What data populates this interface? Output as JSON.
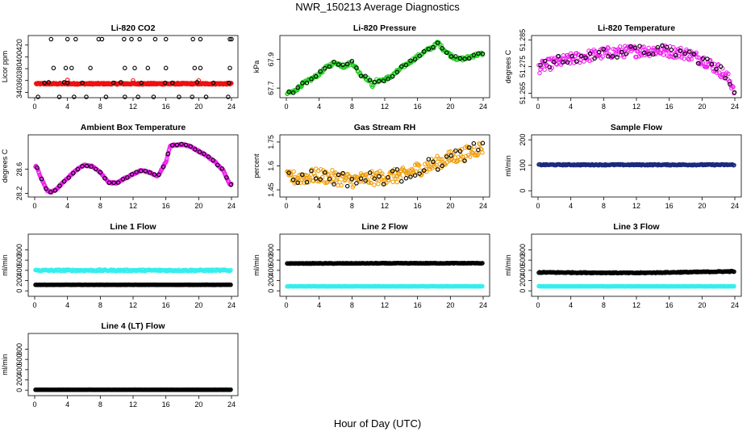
{
  "title": "NWR_150213  Average Diagnostics",
  "xlabel": "Hour of Day (UTC)",
  "colors": {
    "red": "#ee1111",
    "green": "#22cc22",
    "magenta": "#ee22ee",
    "orange": "#f0a010",
    "navy": "#1a2a7a",
    "cyan": "#33eeee",
    "black": "#000000"
  },
  "chart_data": [
    {
      "type": "scatter",
      "title": "Li-820 CO2",
      "ylabel": "Licor ppm",
      "xlim": [
        0,
        24
      ],
      "xticks": [
        0,
        4,
        8,
        12,
        16,
        20,
        24
      ],
      "ylim": [
        335,
        432
      ],
      "yticks": [
        340,
        360,
        380,
        400,
        420
      ],
      "series": [
        {
          "color": "red",
          "values": [
            [
              0.2,
              354.5
            ],
            [
              4.0,
              361.0
            ],
            [
              12.0,
              360.0
            ],
            [
              20.0,
              360.0
            ],
            [
              4.1,
              356
            ],
            [
              12.1,
              356
            ]
          ],
          "band": {
            "x": [
              0.2,
              24
            ],
            "y": 354.5,
            "jitter": 2
          }
        },
        {
          "color": "black",
          "values": [
            [
              0.4,
              331
            ],
            [
              3.0,
              331
            ],
            [
              4.8,
              331
            ],
            [
              6.3,
              331
            ],
            [
              8.7,
              331
            ],
            [
              11.0,
              331
            ],
            [
              12.6,
              331
            ],
            [
              14.5,
              331
            ],
            [
              17.6,
              331
            ],
            [
              19.2,
              331
            ],
            [
              20.9,
              331
            ],
            [
              23.6,
              331
            ],
            [
              1.2,
              356
            ],
            [
              4.0,
              356
            ],
            [
              5.8,
              356
            ],
            [
              9.6,
              356
            ],
            [
              13.0,
              356
            ],
            [
              15.9,
              356
            ],
            [
              16.8,
              356
            ],
            [
              21.8,
              356
            ],
            [
              23.7,
              356
            ],
            [
              1.7,
              357
            ],
            [
              3.6,
              357
            ],
            [
              10.5,
              357
            ],
            [
              19.8,
              357
            ],
            [
              2.3,
              381
            ],
            [
              3.8,
              381
            ],
            [
              4.5,
              381
            ],
            [
              6.8,
              381
            ],
            [
              11.0,
              381
            ],
            [
              12.2,
              381
            ],
            [
              13.8,
              381
            ],
            [
              16.0,
              381
            ],
            [
              19.5,
              381
            ],
            [
              20.2,
              381
            ],
            [
              23.8,
              381
            ],
            [
              2.0,
              430
            ],
            [
              4.0,
              430
            ],
            [
              5.0,
              430
            ],
            [
              7.8,
              430
            ],
            [
              8.2,
              430
            ],
            [
              10.9,
              430
            ],
            [
              11.8,
              430
            ],
            [
              12.8,
              430
            ],
            [
              14.7,
              430
            ],
            [
              16.0,
              430
            ],
            [
              19.3,
              430
            ],
            [
              20.2,
              430
            ],
            [
              23.8,
              430
            ],
            [
              24.0,
              430
            ]
          ]
        }
      ]
    },
    {
      "type": "scatter",
      "title": "Li-820 Pressure",
      "ylabel": "kPa",
      "xlim": [
        0,
        24
      ],
      "xticks": [
        0,
        4,
        8,
        12,
        16,
        20,
        24
      ],
      "ylim": [
        67.65,
        68.05
      ],
      "yticks": [
        67.7,
        67.9
      ],
      "series": [
        {
          "color": "green",
          "dense": true,
          "noise": 0.012,
          "curve": [
            [
              0,
              67.66
            ],
            [
              1,
              67.68
            ],
            [
              2,
              67.73
            ],
            [
              3,
              67.76
            ],
            [
              4,
              67.8
            ],
            [
              5,
              67.85
            ],
            [
              6,
              67.88
            ],
            [
              7,
              67.85
            ],
            [
              8,
              67.88
            ],
            [
              9,
              67.8
            ],
            [
              10,
              67.76
            ],
            [
              10.5,
              67.72
            ],
            [
              11,
              67.75
            ],
            [
              12,
              67.76
            ],
            [
              13,
              67.79
            ],
            [
              14,
              67.84
            ],
            [
              15,
              67.88
            ],
            [
              16,
              67.92
            ],
            [
              17,
              67.96
            ],
            [
              18,
              67.99
            ],
            [
              18.5,
              68.02
            ],
            [
              19,
              67.98
            ],
            [
              20,
              67.93
            ],
            [
              21,
              67.9
            ],
            [
              22,
              67.91
            ],
            [
              23,
              67.93
            ],
            [
              24,
              67.94
            ]
          ]
        }
      ]
    },
    {
      "type": "scatter",
      "title": "Li-820 Temperature",
      "ylabel": "degrees C",
      "xlim": [
        0,
        24
      ],
      "xticks": [
        0,
        4,
        8,
        12,
        16,
        20,
        24
      ],
      "ylim": [
        51.2642,
        51.2858
      ],
      "yticks": [
        51.265,
        51.275,
        51.285
      ],
      "series": [
        {
          "color": "magenta",
          "dense": true,
          "noise": 0.0022,
          "curve": [
            [
              0,
              51.2745
            ],
            [
              2,
              51.2765
            ],
            [
              4,
              51.2778
            ],
            [
              6,
              51.279
            ],
            [
              8,
              51.28
            ],
            [
              10,
              51.2806
            ],
            [
              12,
              51.2808
            ],
            [
              14,
              51.2812
            ],
            [
              16,
              51.2808
            ],
            [
              18,
              51.28
            ],
            [
              20,
              51.2778
            ],
            [
              22,
              51.274
            ],
            [
              23,
              51.2712
            ],
            [
              24,
              51.2665
            ]
          ]
        }
      ]
    },
    {
      "type": "scatter",
      "title": "Ambient Box Temperature",
      "ylabel": "degrees C",
      "xlim": [
        0,
        24
      ],
      "xticks": [
        0,
        4,
        8,
        12,
        16,
        20,
        24
      ],
      "ylim": [
        28.18,
        29.13
      ],
      "yticks": [
        28.2,
        28.6
      ],
      "series": [
        {
          "color": "magenta",
          "dense": true,
          "noise": 0.01,
          "curve": [
            [
              0.2,
              28.65
            ],
            [
              0.8,
              28.45
            ],
            [
              1.5,
              28.25
            ],
            [
              2,
              28.22
            ],
            [
              2.5,
              28.25
            ],
            [
              3,
              28.32
            ],
            [
              4,
              28.45
            ],
            [
              5,
              28.58
            ],
            [
              6,
              28.67
            ],
            [
              7,
              28.65
            ],
            [
              8,
              28.55
            ],
            [
              9,
              28.38
            ],
            [
              10,
              28.37
            ],
            [
              11,
              28.45
            ],
            [
              12,
              28.52
            ],
            [
              13,
              28.58
            ],
            [
              14,
              28.55
            ],
            [
              15,
              28.48
            ],
            [
              16,
              28.72
            ],
            [
              16.5,
              28.98
            ],
            [
              17,
              29.0
            ],
            [
              18,
              29.01
            ],
            [
              19,
              28.98
            ],
            [
              20,
              28.9
            ],
            [
              21,
              28.82
            ],
            [
              22,
              28.72
            ],
            [
              23,
              28.58
            ],
            [
              23.8,
              28.35
            ]
          ]
        }
      ]
    },
    {
      "type": "scatter",
      "title": "Gas Stream RH",
      "ylabel": "percent",
      "xlim": [
        0,
        24
      ],
      "xticks": [
        0,
        4,
        8,
        12,
        16,
        20,
        24
      ],
      "ylim": [
        1.42,
        1.78
      ],
      "yticks": [
        1.45,
        1.6,
        1.75
      ],
      "series": [
        {
          "color": "orange",
          "dense": true,
          "noise": 0.045,
          "curve": [
            [
              0,
              1.52
            ],
            [
              4,
              1.54
            ],
            [
              8,
              1.51
            ],
            [
              12,
              1.53
            ],
            [
              14,
              1.54
            ],
            [
              16,
              1.58
            ],
            [
              18,
              1.61
            ],
            [
              20,
              1.65
            ],
            [
              22,
              1.68
            ],
            [
              24,
              1.72
            ]
          ]
        }
      ]
    },
    {
      "type": "scatter",
      "title": "Sample Flow",
      "ylabel": "ml/min",
      "xlim": [
        0,
        24
      ],
      "xticks": [
        0,
        4,
        8,
        12,
        16,
        20,
        24
      ],
      "ylim": [
        -15,
        210
      ],
      "yticks": [
        0,
        100,
        200
      ],
      "series": [
        {
          "color": "navy",
          "dense": true,
          "noise": 2,
          "curve": [
            [
              0,
              102
            ],
            [
              24,
              102
            ]
          ]
        }
      ]
    },
    {
      "type": "scatter",
      "title": "Line 1 Flow",
      "ylabel": "ml/min",
      "xlim": [
        0,
        24
      ],
      "xticks": [
        0,
        4,
        8,
        12,
        16,
        20,
        24
      ],
      "ylim": [
        -60,
        1060
      ],
      "yticks": [
        0,
        200,
        400,
        600,
        800
      ],
      "series": [
        {
          "color": "cyan",
          "dense": true,
          "noise": 15,
          "curve": [
            [
              0,
              400
            ],
            [
              24,
              400
            ]
          ]
        },
        {
          "color": "black",
          "dense": true,
          "noise": 3,
          "curve": [
            [
              0,
              118
            ],
            [
              24,
              118
            ]
          ]
        }
      ]
    },
    {
      "type": "scatter",
      "title": "Line 2 Flow",
      "ylabel": "ml/min",
      "xlim": [
        0,
        24
      ],
      "xticks": [
        0,
        4,
        8,
        12,
        16,
        20,
        24
      ],
      "ylim": [
        -60,
        1060
      ],
      "yticks": [
        0,
        200,
        400,
        600,
        800
      ],
      "series": [
        {
          "color": "black",
          "dense": true,
          "noise": 5,
          "curve": [
            [
              0,
              535
            ],
            [
              24,
              540
            ]
          ]
        },
        {
          "color": "cyan",
          "dense": true,
          "noise": 3,
          "curve": [
            [
              0,
              88
            ],
            [
              24,
              88
            ]
          ]
        }
      ]
    },
    {
      "type": "scatter",
      "title": "Line 3 Flow",
      "ylabel": "ml/min",
      "xlim": [
        0,
        24
      ],
      "xticks": [
        0,
        4,
        8,
        12,
        16,
        20,
        24
      ],
      "ylim": [
        -60,
        1060
      ],
      "yticks": [
        0,
        200,
        400,
        600,
        800
      ],
      "series": [
        {
          "color": "black",
          "dense": true,
          "noise": 8,
          "curve": [
            [
              0,
              360
            ],
            [
              12,
              350
            ],
            [
              24,
              380
            ]
          ]
        },
        {
          "color": "cyan",
          "dense": true,
          "noise": 3,
          "curve": [
            [
              0,
              88
            ],
            [
              24,
              88
            ]
          ]
        }
      ]
    },
    {
      "type": "scatter",
      "title": "Line 4 (LT) Flow",
      "ylabel": "ml/min",
      "xlim": [
        0,
        24
      ],
      "xticks": [
        0,
        4,
        8,
        12,
        16,
        20,
        24
      ],
      "ylim": [
        -60,
        1060
      ],
      "yticks": [
        0,
        200,
        400,
        600,
        800
      ],
      "series": [
        {
          "color": "cyan",
          "dense": true,
          "noise": 2,
          "curve": [
            [
              0,
              10
            ],
            [
              24,
              10
            ]
          ]
        },
        {
          "color": "black",
          "dense": true,
          "noise": 2,
          "curve": [
            [
              0,
              8
            ],
            [
              24,
              8
            ]
          ]
        }
      ]
    }
  ]
}
